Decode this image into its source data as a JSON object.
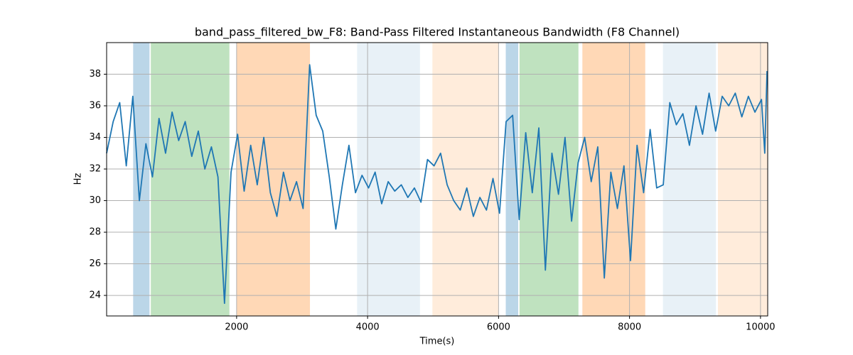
{
  "chart_data": {
    "type": "line",
    "title": "band_pass_filtered_bw_F8: Band-Pass Filtered Instantaneous Bandwidth (F8 Channel)",
    "xlabel": "Time(s)",
    "ylabel": "Hz",
    "xlim": [
      15,
      10110
    ],
    "ylim": [
      22.7,
      40.0
    ],
    "xticks": [
      2000,
      4000,
      6000,
      8000,
      10000
    ],
    "yticks": [
      24,
      26,
      28,
      30,
      32,
      34,
      36,
      38
    ],
    "grid": true,
    "spans": [
      {
        "start": 420,
        "end": 670,
        "color": "#1f77b4",
        "opacity": 0.3
      },
      {
        "start": 690,
        "end": 1890,
        "color": "#2ca02c",
        "opacity": 0.3
      },
      {
        "start": 2000,
        "end": 3120,
        "color": "#ff7f0e",
        "opacity": 0.3
      },
      {
        "start": 3840,
        "end": 4800,
        "color": "#1f77b4",
        "opacity": 0.1
      },
      {
        "start": 4990,
        "end": 6000,
        "color": "#ff7f0e",
        "opacity": 0.15
      },
      {
        "start": 6110,
        "end": 6300,
        "color": "#1f77b4",
        "opacity": 0.3
      },
      {
        "start": 6320,
        "end": 7220,
        "color": "#2ca02c",
        "opacity": 0.3
      },
      {
        "start": 7280,
        "end": 8240,
        "color": "#ff7f0e",
        "opacity": 0.3
      },
      {
        "start": 8510,
        "end": 9320,
        "color": "#1f77b4",
        "opacity": 0.1
      },
      {
        "start": 9350,
        "end": 10110,
        "color": "#ff7f0e",
        "opacity": 0.15
      }
    ],
    "x": [
      15,
      115,
      215,
      315,
      415,
      515,
      615,
      715,
      815,
      915,
      1015,
      1115,
      1215,
      1315,
      1415,
      1515,
      1615,
      1715,
      1815,
      1915,
      2015,
      2115,
      2215,
      2315,
      2415,
      2515,
      2615,
      2715,
      2815,
      2915,
      3015,
      3115,
      3215,
      3315,
      3415,
      3515,
      3615,
      3715,
      3815,
      3915,
      4015,
      4115,
      4215,
      4315,
      4415,
      4515,
      4615,
      4715,
      4815,
      4915,
      5015,
      5115,
      5215,
      5315,
      5415,
      5515,
      5615,
      5715,
      5815,
      5915,
      6015,
      6115,
      6215,
      6315,
      6415,
      6515,
      6615,
      6715,
      6815,
      6915,
      7015,
      7115,
      7215,
      7315,
      7415,
      7515,
      7615,
      7715,
      7815,
      7915,
      8015,
      8115,
      8215,
      8315,
      8415,
      8515,
      8615,
      8715,
      8815,
      8915,
      9015,
      9115,
      9215,
      9315,
      9415,
      9515,
      9615,
      9715,
      9815,
      9915,
      10015,
      10065,
      10100
    ],
    "series": [
      {
        "name": "band_pass_filtered_bw_F8",
        "color": "#1f77b4",
        "values": [
          33.0,
          35.0,
          36.2,
          32.2,
          36.6,
          30.0,
          33.6,
          31.5,
          35.2,
          33.0,
          35.6,
          33.8,
          35.0,
          32.8,
          34.4,
          32.0,
          33.4,
          31.5,
          23.5,
          31.8,
          34.2,
          30.6,
          33.5,
          31.0,
          34.0,
          30.5,
          29.0,
          31.8,
          30.0,
          31.2,
          29.5,
          38.6,
          35.4,
          34.4,
          31.5,
          28.2,
          31.0,
          33.5,
          30.5,
          31.6,
          30.8,
          31.8,
          29.8,
          31.2,
          30.6,
          31.0,
          30.2,
          30.8,
          29.9,
          32.6,
          32.2,
          33.0,
          31.0,
          30.0,
          29.4,
          30.8,
          29.0,
          30.2,
          29.4,
          31.4,
          29.2,
          35.0,
          35.4,
          28.8,
          34.3,
          30.5,
          34.6,
          25.6,
          33.0,
          30.4,
          34.0,
          28.7,
          32.4,
          34.0,
          31.2,
          33.4,
          25.1,
          31.8,
          29.5,
          32.2,
          26.2,
          33.5,
          30.5,
          34.5,
          30.8,
          31.0,
          36.2,
          34.8,
          35.5,
          33.5,
          36.0,
          34.2,
          36.8,
          34.4,
          36.6,
          36.0,
          36.8,
          35.3,
          36.6,
          35.6,
          36.4,
          33.0,
          38.2
        ]
      }
    ]
  }
}
